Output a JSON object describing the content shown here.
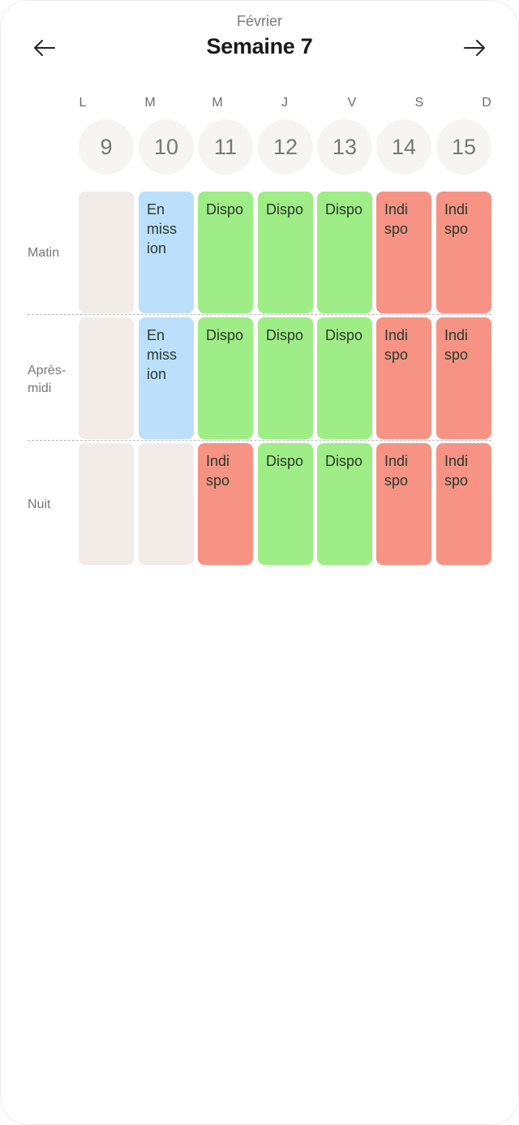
{
  "header": {
    "month": "Février",
    "title": "Semaine 7",
    "prev_icon": "arrow-left-icon",
    "next_icon": "arrow-right-icon"
  },
  "days": [
    {
      "letter": "L",
      "num": "9"
    },
    {
      "letter": "M",
      "num": "10"
    },
    {
      "letter": "M",
      "num": "11"
    },
    {
      "letter": "J",
      "num": "12"
    },
    {
      "letter": "V",
      "num": "13"
    },
    {
      "letter": "S",
      "num": "14"
    },
    {
      "letter": "D",
      "num": "15"
    }
  ],
  "colors": {
    "empty": "#f1ece8",
    "mission": "#bcdffb",
    "dispo": "#9eed86",
    "indispo": "#f69385"
  },
  "rows": [
    {
      "label": "Matin",
      "cells": [
        {
          "status": "empty",
          "text": ""
        },
        {
          "status": "mission",
          "text": "En\nmiss\nion"
        },
        {
          "status": "dispo",
          "text": "Dispo"
        },
        {
          "status": "dispo",
          "text": "Dispo"
        },
        {
          "status": "dispo",
          "text": "Dispo"
        },
        {
          "status": "indispo",
          "text": "Indi\nspo"
        },
        {
          "status": "indispo",
          "text": "Indi\nspo"
        }
      ]
    },
    {
      "label": "Après-\nmidi",
      "cells": [
        {
          "status": "empty",
          "text": ""
        },
        {
          "status": "mission",
          "text": "En\nmiss\nion"
        },
        {
          "status": "dispo",
          "text": "Dispo"
        },
        {
          "status": "dispo",
          "text": "Dispo"
        },
        {
          "status": "dispo",
          "text": "Dispo"
        },
        {
          "status": "indispo",
          "text": "Indi\nspo"
        },
        {
          "status": "indispo",
          "text": "Indi\nspo"
        }
      ]
    },
    {
      "label": "Nuit",
      "cells": [
        {
          "status": "empty",
          "text": ""
        },
        {
          "status": "empty",
          "text": ""
        },
        {
          "status": "indispo",
          "text": "Indi\nspo"
        },
        {
          "status": "dispo",
          "text": "Dispo"
        },
        {
          "status": "dispo",
          "text": "Dispo"
        },
        {
          "status": "indispo",
          "text": "Indi\nspo"
        },
        {
          "status": "indispo",
          "text": "Indi\nspo"
        }
      ]
    }
  ]
}
